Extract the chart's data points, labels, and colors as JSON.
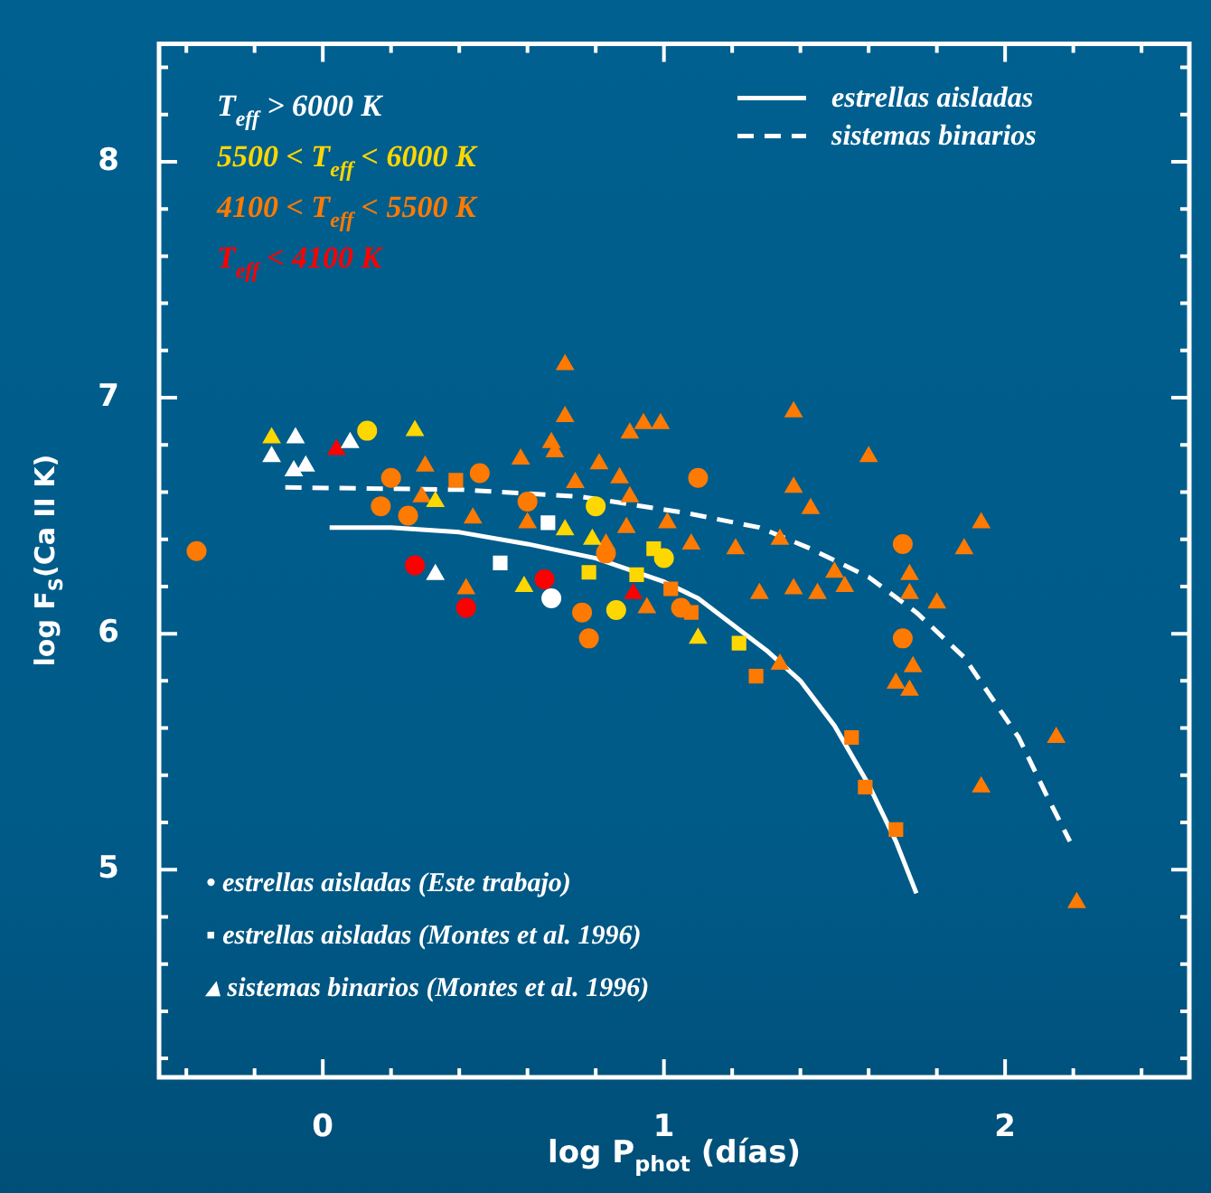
{
  "chart_data": {
    "type": "scatter",
    "xlabel": "log P$_{phot}$ (días)",
    "ylabel": "log F$_{S}$(Ca II K)",
    "xlim": [
      -0.48,
      2.54
    ],
    "ylim": [
      4.12,
      8.5
    ],
    "xticks": [
      {
        "value": -0.4,
        "label": null
      },
      {
        "value": -0.2,
        "label": null
      },
      0,
      {
        "value": 0.2,
        "label": null
      },
      {
        "value": 0.4,
        "label": null
      },
      {
        "value": 0.6,
        "label": null
      },
      {
        "value": 0.8,
        "label": null
      },
      1,
      {
        "value": 1.2,
        "label": null
      },
      {
        "value": 1.4,
        "label": null
      },
      {
        "value": 1.6,
        "label": null
      },
      {
        "value": 1.8,
        "label": null
      },
      2,
      {
        "value": 2.2,
        "label": null
      },
      {
        "value": 2.4,
        "label": null
      }
    ],
    "yticks": [
      {
        "value": 4.2,
        "label": null
      },
      {
        "value": 4.4,
        "label": null
      },
      {
        "value": 4.6,
        "label": null
      },
      {
        "value": 4.8,
        "label": null
      },
      5,
      {
        "value": 5.2,
        "label": null
      },
      {
        "value": 5.4,
        "label": null
      },
      {
        "value": 5.6,
        "label": null
      },
      {
        "value": 5.8,
        "label": null
      },
      6,
      {
        "value": 6.2,
        "label": null
      },
      {
        "value": 6.4,
        "label": null
      },
      {
        "value": 6.6,
        "label": null
      },
      {
        "value": 6.8,
        "label": null
      },
      7,
      {
        "value": 7.2,
        "label": null
      },
      {
        "value": 7.4,
        "label": null
      },
      {
        "value": 7.6,
        "label": null
      },
      {
        "value": 7.8,
        "label": null
      },
      8,
      {
        "value": 8.2,
        "label": null
      },
      {
        "value": 8.4,
        "label": null
      }
    ],
    "grid": false,
    "legend": "top right",
    "series": [
      {
        "name": "T$_{eff}$ > 6000 K",
        "color": "#ffffff",
        "marker": "circle",
        "x": [
          0.67
        ],
        "values": [
          6.15
        ]
      },
      {
        "name": "5500 < T$_{eff}$ < 6000 K",
        "color": "#ffd700",
        "marker": "circle",
        "x": [
          0.13,
          0.86,
          1.0,
          0.8
        ],
        "values": [
          6.86,
          6.1,
          6.32,
          6.54
        ]
      },
      {
        "name": "4100 < T$_{eff}$ < 5500 K",
        "color": "#ff7a00",
        "marker": "circle",
        "x": [
          -0.37,
          0.2,
          0.17,
          0.25,
          0.46,
          0.6,
          1.1,
          0.76,
          0.78,
          0.83,
          1.05,
          1.7,
          1.7
        ],
        "values": [
          6.35,
          6.66,
          6.54,
          6.5,
          6.68,
          6.56,
          6.66,
          6.09,
          5.98,
          6.34,
          6.11,
          6.38,
          5.98
        ]
      },
      {
        "name": "T$_{eff}$ < 4100 K",
        "color": "#ff0000",
        "marker": "circle",
        "x": [
          0.27,
          0.42,
          0.65
        ],
        "values": [
          6.29,
          6.11,
          6.23
        ]
      },
      {
        "color": "#ffffff",
        "marker": "square",
        "x": [
          0.66,
          0.52
        ],
        "values": [
          6.47,
          6.3
        ]
      },
      {
        "color": "#ffd700",
        "marker": "square",
        "x": [
          0.97,
          0.78,
          0.92,
          1.22
        ],
        "values": [
          6.36,
          6.26,
          6.25,
          5.96
        ]
      },
      {
        "color": "#ff7a00",
        "marker": "square",
        "x": [
          0.39,
          1.02,
          1.08,
          1.27,
          1.55,
          1.59,
          1.68
        ],
        "values": [
          6.65,
          6.19,
          6.09,
          5.82,
          5.56,
          5.35,
          5.17
        ]
      },
      {
        "color": "#ffffff",
        "marker": "triangle",
        "x": [
          -0.15,
          -0.08,
          -0.085,
          -0.05,
          0.08,
          0.33
        ],
        "values": [
          6.75,
          6.83,
          6.69,
          6.71,
          6.81,
          6.25
        ]
      },
      {
        "color": "#ffd700",
        "marker": "triangle",
        "x": [
          -0.15,
          0.27,
          0.33,
          0.71,
          0.79,
          0.59,
          1.1
        ],
        "values": [
          6.83,
          6.86,
          6.56,
          6.44,
          6.4,
          6.2,
          5.98
        ]
      },
      {
        "color": "#ff7a00",
        "marker": "triangle",
        "x": [
          0.3,
          0.29,
          0.44,
          0.58,
          0.71,
          0.71,
          0.67,
          0.68,
          0.81,
          0.9,
          0.94,
          0.99,
          0.87,
          0.6,
          0.74,
          0.9,
          1.01,
          0.89,
          0.83,
          1.08,
          0.42,
          0.95,
          1.38,
          1.6,
          1.38,
          1.43,
          1.93,
          1.88,
          1.34,
          1.21,
          1.28,
          1.38,
          1.45,
          1.5,
          1.53,
          1.72,
          1.72,
          1.8,
          1.73,
          1.34,
          1.68,
          1.72,
          2.15,
          1.93,
          2.21
        ],
        "values": [
          6.71,
          6.58,
          6.49,
          6.74,
          7.14,
          6.92,
          6.81,
          6.77,
          6.72,
          6.85,
          6.89,
          6.89,
          6.66,
          6.47,
          6.64,
          6.58,
          6.47,
          6.45,
          6.38,
          6.38,
          6.19,
          6.11,
          6.94,
          6.75,
          6.62,
          6.53,
          6.47,
          6.36,
          6.4,
          6.36,
          6.17,
          6.19,
          6.17,
          6.26,
          6.2,
          6.25,
          6.17,
          6.13,
          5.86,
          5.87,
          5.79,
          5.76,
          5.56,
          5.35,
          4.86
        ]
      },
      {
        "color": "#ff0000",
        "marker": "triangle",
        "x": [
          0.04,
          0.91
        ],
        "values": [
          6.78,
          6.17
        ]
      },
      {
        "name": "estrellas aisladas",
        "type": "line",
        "color": "#ffffff",
        "line_style": "solid",
        "marker": "none",
        "x": [
          0.02,
          0.2,
          0.4,
          0.6,
          0.8,
          1.0,
          1.1,
          1.2,
          1.3,
          1.4,
          1.5,
          1.6,
          1.68,
          1.74
        ],
        "values": [
          6.45,
          6.45,
          6.43,
          6.38,
          6.32,
          6.22,
          6.15,
          6.04,
          5.93,
          5.8,
          5.61,
          5.36,
          5.12,
          4.9
        ]
      },
      {
        "name": "sistemas binarios",
        "type": "line",
        "color": "#ffffff",
        "line_style": "dashed",
        "marker": "none",
        "x": [
          -0.11,
          0.41,
          0.76,
          1.07,
          1.28,
          1.43,
          1.6,
          1.74,
          1.88,
          2.04,
          2.12,
          2.19
        ],
        "values": [
          6.62,
          6.61,
          6.58,
          6.51,
          6.45,
          6.36,
          6.24,
          6.09,
          5.9,
          5.56,
          5.32,
          5.12
        ]
      }
    ],
    "annotations": [
      "• estrellas aisladas (Este trabajo)",
      "▪ estrellas aisladas (Montes et al. 1996)",
      "▴ sistemas binarios (Montes et al. 1996)"
    ]
  }
}
